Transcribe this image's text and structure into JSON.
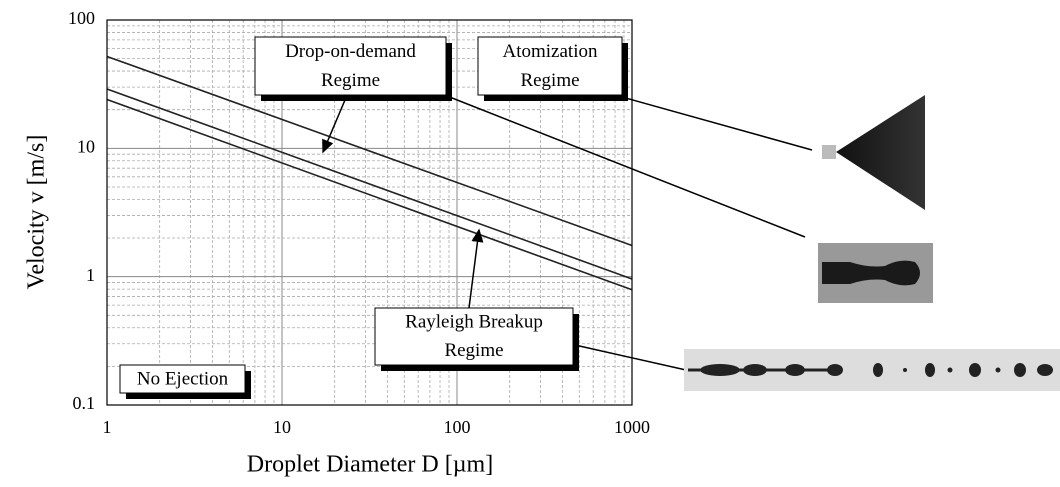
{
  "chart_data": {
    "type": "line",
    "x_label": "Droplet Diameter D [µm]",
    "y_label": "Velocity v [m/s]",
    "log_x": true,
    "log_y": true,
    "grid": true,
    "xlim": [
      1,
      1000
    ],
    "ylim": [
      0.1,
      100
    ],
    "xticks": [
      1,
      10,
      100,
      1000
    ],
    "yticks": [
      0.1,
      1,
      10,
      100
    ],
    "series": [
      {
        "color": "#222222",
        "x": [
          1,
          1000
        ],
        "values": [
          52,
          1.75
        ]
      },
      {
        "color": "#222222",
        "x": [
          1,
          1000
        ],
        "values": [
          29,
          0.96
        ]
      },
      {
        "color": "#222222",
        "x": [
          1,
          1000
        ],
        "values": [
          24,
          0.79
        ]
      }
    ],
    "annotations": [
      {
        "text": [
          "Drop-on-demand",
          "Regime"
        ]
      },
      {
        "text": [
          "Atomization",
          "Regime"
        ]
      },
      {
        "text": [
          "Rayleigh Breakup",
          "Regime"
        ]
      },
      {
        "text": [
          "No Ejection"
        ]
      }
    ]
  }
}
